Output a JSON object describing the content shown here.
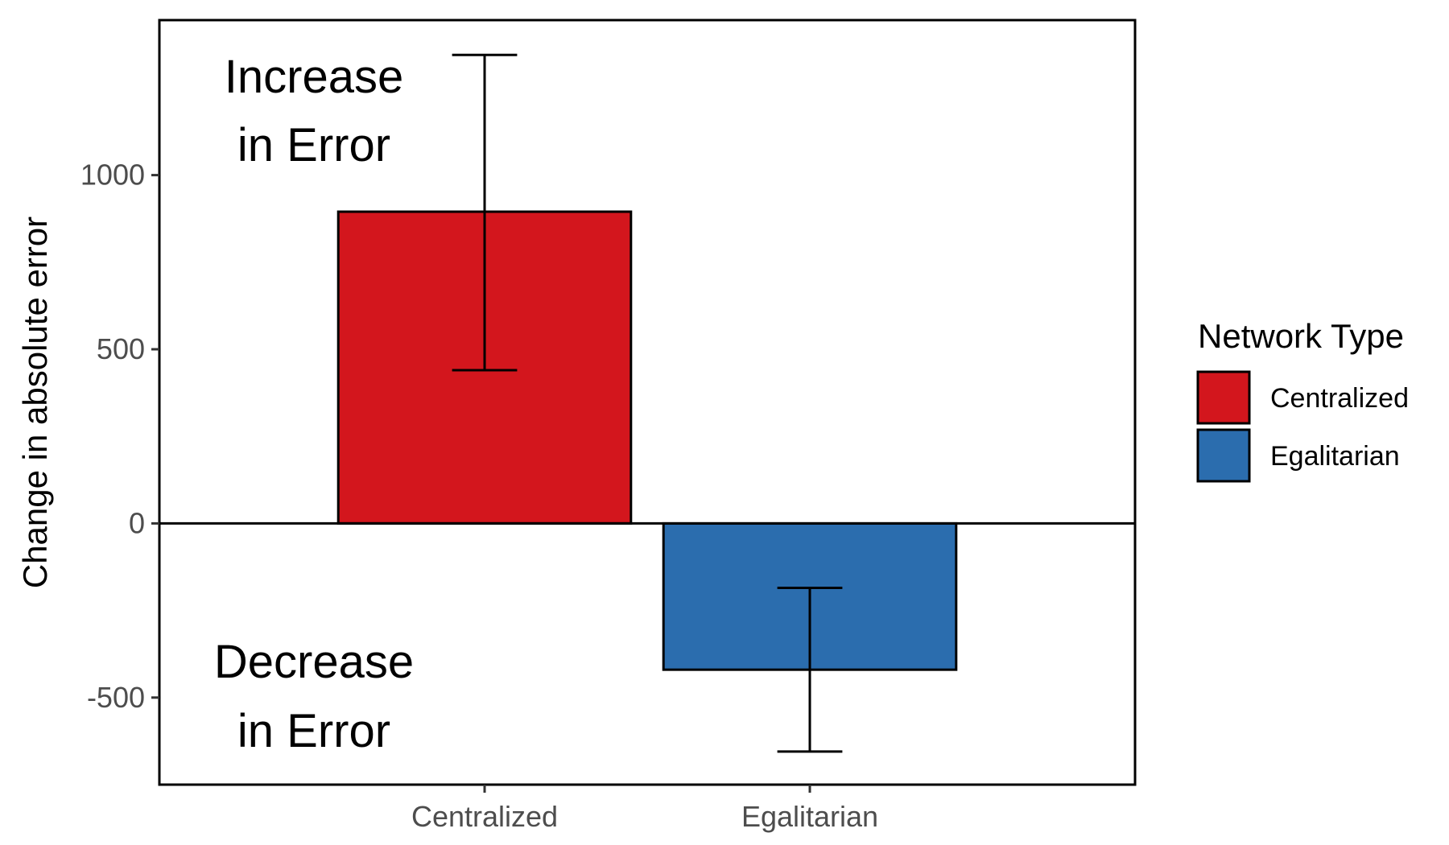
{
  "chart_data": {
    "type": "bar",
    "title": "",
    "xlabel": "",
    "ylabel": "Change in absolute error",
    "categories": [
      "Centralized",
      "Egalitarian"
    ],
    "values": [
      895,
      -420
    ],
    "error_bars": [
      {
        "low": 440,
        "high": 1345
      },
      {
        "low": -655,
        "high": -185
      }
    ],
    "ylim": [
      -750,
      1445
    ],
    "yticks": [
      -500,
      0,
      500,
      1000
    ],
    "ytick_labels": [
      "-500",
      "0",
      "500",
      "1000"
    ],
    "grid": false,
    "zero_line": true,
    "colors": [
      "#d3161d",
      "#2b6dae"
    ],
    "annotations": [
      {
        "lines": [
          "Increase",
          "in Error"
        ],
        "position": "top-left"
      },
      {
        "lines": [
          "Decrease",
          "in Error"
        ],
        "position": "bottom-left"
      }
    ],
    "legend": {
      "title": "Network Type",
      "placement": "right",
      "entries": [
        {
          "label": "Centralized",
          "color": "#d3161d"
        },
        {
          "label": "Egalitarian",
          "color": "#2b6dae"
        }
      ]
    }
  }
}
